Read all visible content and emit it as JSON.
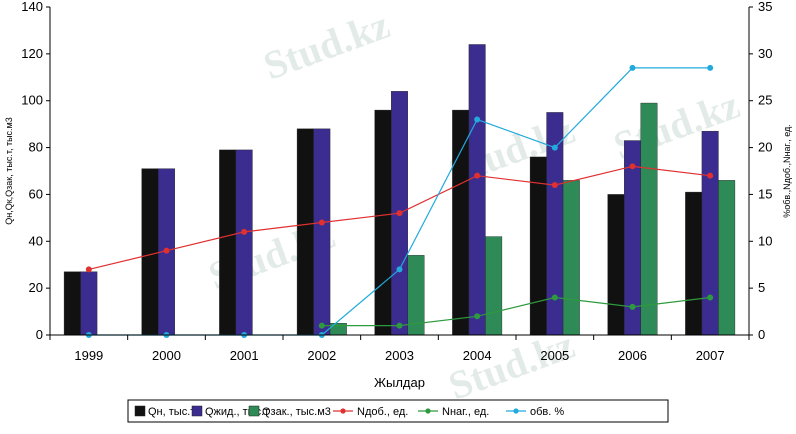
{
  "chart_data": {
    "type": "bar",
    "categories": [
      "1999",
      "2000",
      "2001",
      "2002",
      "2003",
      "2004",
      "2005",
      "2006",
      "2007"
    ],
    "xlabel": "Жылдар",
    "ylabel_left": "Qн,Qк,Qзак, тыс.т, тыс.м3",
    "ylabel_right": "%обв.,Nдоб.,Nнаг., ед.",
    "ylim_left": [
      0,
      140
    ],
    "yticks_left": [
      "0",
      "20",
      "40",
      "60",
      "80",
      "100",
      "120",
      "140"
    ],
    "ylim_right": [
      0,
      35
    ],
    "yticks_right": [
      "0",
      "5",
      "10",
      "15",
      "20",
      "25",
      "30",
      "35"
    ],
    "grid": false,
    "legend_position": "bottom",
    "bar_series": [
      {
        "name": "Qн, тыс.т",
        "color": "#111111",
        "values": [
          27,
          71,
          79,
          88,
          96,
          96,
          76,
          60,
          61
        ]
      },
      {
        "name": "Qжид., тыс.т",
        "color": "#3b2d8f",
        "values": [
          27,
          71,
          79,
          88,
          104,
          124,
          95,
          83,
          87
        ]
      },
      {
        "name": "Qзак., тыс.м3",
        "color": "#2e8b57",
        "values": [
          0,
          0,
          0,
          5,
          34,
          42,
          66,
          99,
          66
        ]
      }
    ],
    "line_series": [
      {
        "name": "Nдоб., ед.",
        "color": "#e03030",
        "values": [
          7,
          9,
          11,
          12,
          13,
          17,
          16,
          18,
          17
        ]
      },
      {
        "name": "Nнаг., ед.",
        "color": "#2e9a3e",
        "values": [
          null,
          null,
          null,
          1,
          1,
          2,
          4,
          3,
          4
        ]
      },
      {
        "name": "обв. %",
        "color": "#22aadd",
        "values": [
          0,
          0,
          0,
          0,
          7,
          23,
          20,
          28.5,
          28.5
        ]
      }
    ],
    "watermark": "Stud.kz"
  }
}
